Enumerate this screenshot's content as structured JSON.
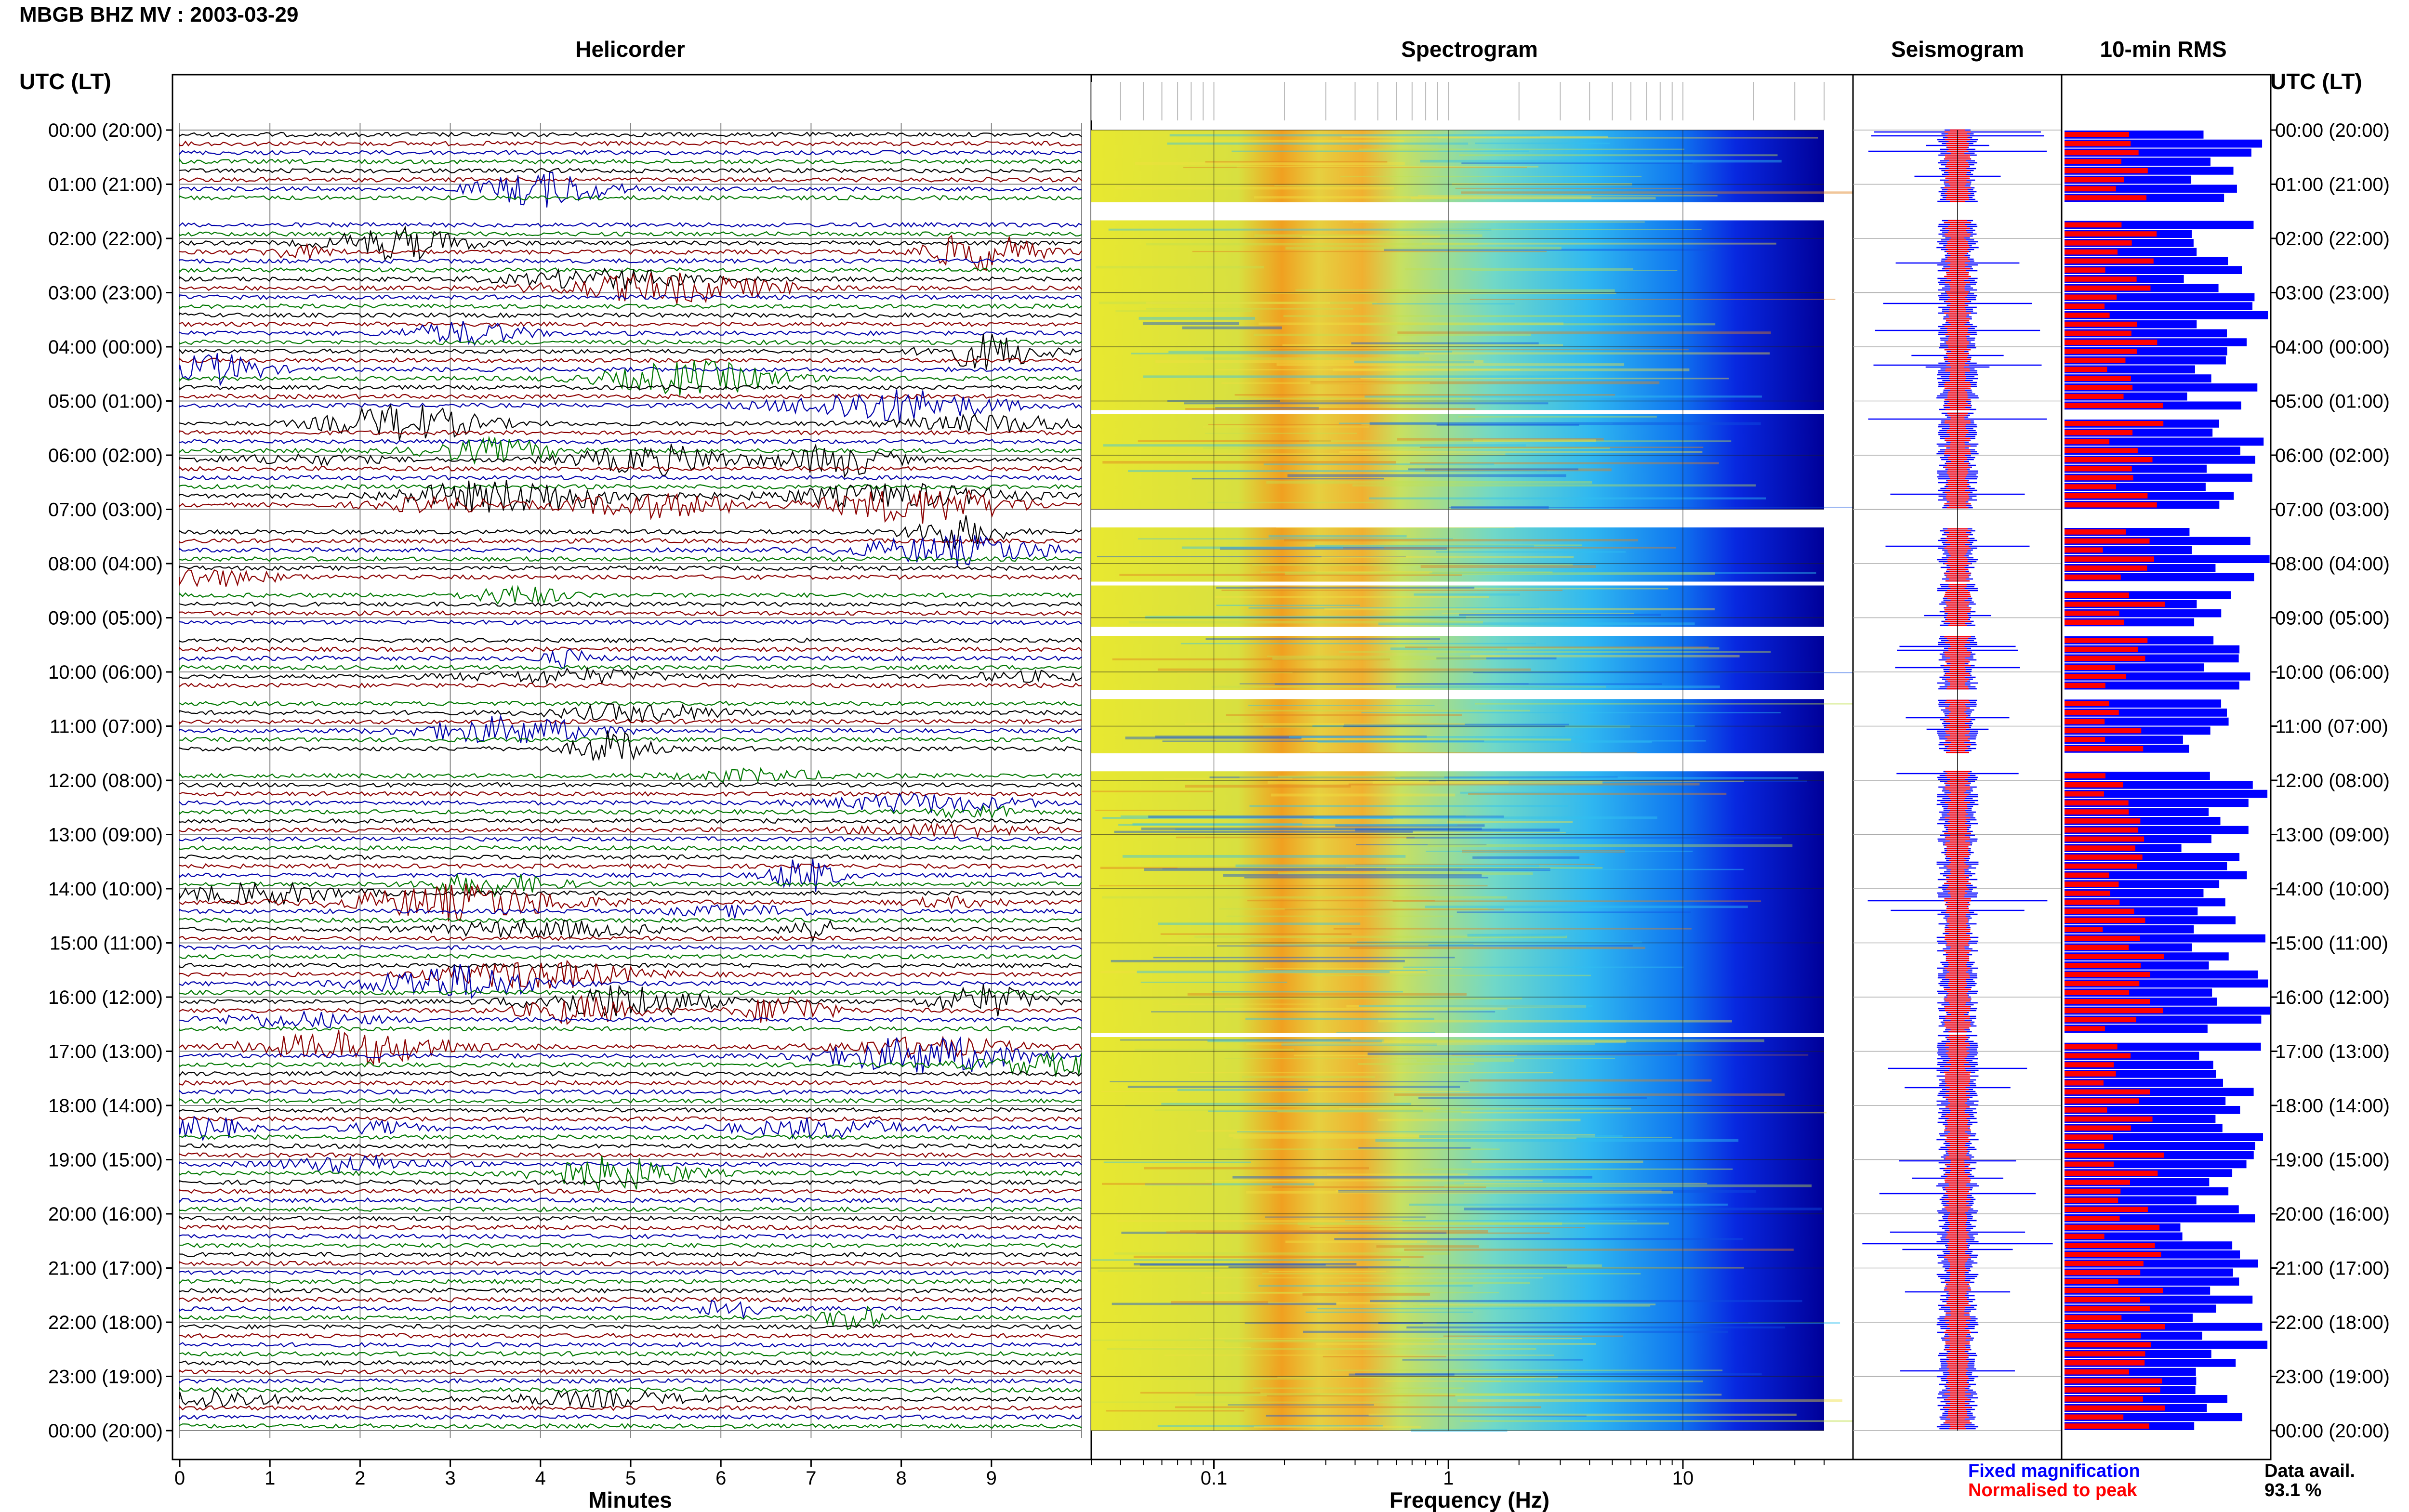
{
  "header": {
    "title": "MBGB BHZ MV : 2003-03-29"
  },
  "panels": {
    "helicorder": "Helicorder",
    "spectrogram": "Spectrogram",
    "seismogram": "Seismogram",
    "rms": "10-min RMS"
  },
  "time_axis_label": "UTC (LT)",
  "time_ticks": [
    "00:00 (20:00)",
    "01:00 (21:00)",
    "02:00 (22:00)",
    "03:00 (23:00)",
    "04:00 (00:00)",
    "05:00 (01:00)",
    "06:00 (02:00)",
    "07:00 (03:00)",
    "08:00 (04:00)",
    "09:00 (05:00)",
    "10:00 (06:00)",
    "11:00 (07:00)",
    "12:00 (08:00)",
    "13:00 (09:00)",
    "14:00 (10:00)",
    "15:00 (11:00)",
    "16:00 (12:00)",
    "17:00 (13:00)",
    "18:00 (14:00)",
    "19:00 (15:00)",
    "20:00 (16:00)",
    "21:00 (17:00)",
    "22:00 (18:00)",
    "23:00 (19:00)",
    "00:00 (20:00)"
  ],
  "x_axes": {
    "minutes_label": "Minutes",
    "minutes_ticks": [
      "0",
      "1",
      "2",
      "3",
      "4",
      "5",
      "6",
      "7",
      "8",
      "9"
    ],
    "frequency_label": "Frequency (Hz)",
    "frequency_ticks": [
      "0.1",
      "1",
      "10"
    ]
  },
  "legend": {
    "fixed": "Fixed magnification",
    "normalised": "Normalised to peak",
    "fixed_color": "#0000ff",
    "normalised_color": "#ff0000"
  },
  "availability": {
    "label": "Data avail.",
    "value": "93.1 %"
  },
  "colors": {
    "trace_cycle": [
      "#000000",
      "#8b0000",
      "#0000aa",
      "#007700"
    ],
    "gap": "#ffffff"
  },
  "chart_data": {
    "type": "heatmap",
    "station": "MBGB BHZ MV",
    "date": "2003-03-29",
    "time_range_utc": [
      "00:00",
      "24:00"
    ],
    "helicorder_minutes_range": [
      0,
      10
    ],
    "frequency_range_hz": [
      0.03,
      40
    ],
    "frequency_scale": "log",
    "data_gaps_utc": [
      [
        "01:20",
        "01:40"
      ],
      [
        "05:10",
        "05:12"
      ],
      [
        "07:00",
        "07:20"
      ],
      [
        "08:20",
        "08:22"
      ],
      [
        "09:10",
        "09:20"
      ],
      [
        "10:20",
        "10:30"
      ],
      [
        "11:30",
        "11:50"
      ],
      [
        "16:40",
        "16:42"
      ]
    ],
    "data_availability_percent": 93.1
  }
}
